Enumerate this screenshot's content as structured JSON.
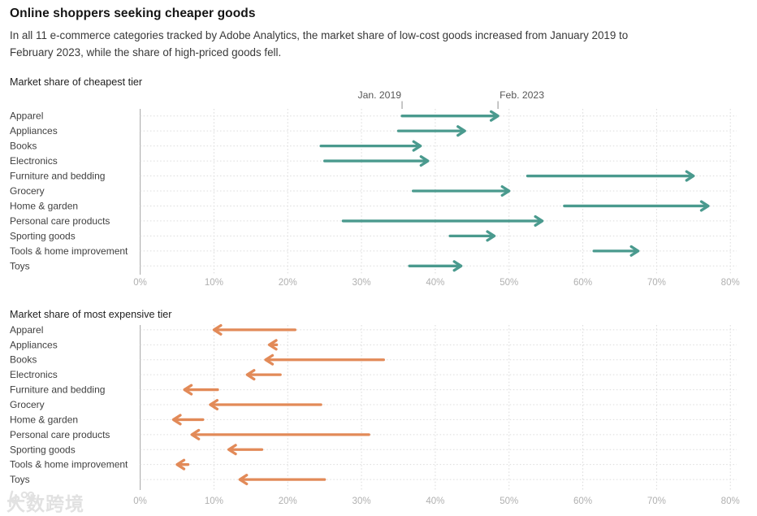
{
  "header": {
    "title": "Online shoppers seeking cheaper goods",
    "subtitle_lines": [
      "In all 11 e-commerce categories tracked by Adobe Analytics, the market share of low-cost goods increased from January 2019 to",
      "February 2023, while the share of high-priced goods fell."
    ]
  },
  "colors": {
    "increase_arrow": "#4a9a8e",
    "decrease_arrow": "#e28a58",
    "axis_line": "#a6a6a6",
    "gridline": "#d9d9d9",
    "row_guide": "#dcdcdc",
    "axis_label": "#b0b0b0",
    "category_label": "#404040",
    "annotation_text": "#565656",
    "annotation_tick": "#8f8f8f"
  },
  "watermark": {
    "icon": "k100-logo-icon",
    "text": "大数跨境"
  },
  "chart_data": [
    {
      "type": "arrow",
      "title": "Market share of cheapest tier",
      "direction": "increase",
      "xlim": [
        0,
        80
      ],
      "tick_values": [
        0,
        10,
        20,
        30,
        40,
        50,
        60,
        70,
        80
      ],
      "tick_labels": [
        "0%",
        "10%",
        "20%",
        "30%",
        "40%",
        "50%",
        "60%",
        "70%",
        "80%"
      ],
      "grid": true,
      "annotations": [
        {
          "label": "Jan. 2019",
          "value": 35.5,
          "anchor": "end"
        },
        {
          "label": "Feb. 2023",
          "value": 48.5,
          "anchor": "start"
        }
      ],
      "categories": [
        "Apparel",
        "Appliances",
        "Books",
        "Electronics",
        "Furniture and bedding",
        "Grocery",
        "Home & garden",
        "Personal care products",
        "Sporting goods",
        "Tools & home improvement",
        "Toys"
      ],
      "series": [
        {
          "name": "Jan. 2019",
          "values": [
            35.5,
            35,
            24.5,
            25,
            52.5,
            37,
            57.5,
            27.5,
            42,
            61.5,
            36.5
          ]
        },
        {
          "name": "Feb. 2023",
          "values": [
            48.5,
            44,
            38,
            39,
            75,
            50,
            77,
            54.5,
            48,
            67.5,
            43.5
          ]
        }
      ]
    },
    {
      "type": "arrow",
      "title": "Market share of most expensive tier",
      "direction": "decrease",
      "xlim": [
        0,
        80
      ],
      "tick_values": [
        0,
        10,
        20,
        30,
        40,
        50,
        60,
        70,
        80
      ],
      "tick_labels": [
        "0%",
        "10%",
        "20%",
        "30%",
        "40%",
        "50%",
        "60%",
        "70%",
        "80%"
      ],
      "grid": true,
      "annotations": [],
      "categories": [
        "Apparel",
        "Appliances",
        "Books",
        "Electronics",
        "Furniture and bedding",
        "Grocery",
        "Home & garden",
        "Personal care products",
        "Sporting goods",
        "Tools & home improvement",
        "Toys"
      ],
      "series": [
        {
          "name": "Jan. 2019",
          "values": [
            21,
            18.5,
            33,
            19,
            10.5,
            24.5,
            8.5,
            31,
            16.5,
            6.5,
            25
          ]
        },
        {
          "name": "Feb. 2023",
          "values": [
            10,
            17.5,
            17,
            14.5,
            6,
            9.5,
            4.5,
            7,
            12,
            5,
            13.5
          ]
        }
      ]
    }
  ]
}
